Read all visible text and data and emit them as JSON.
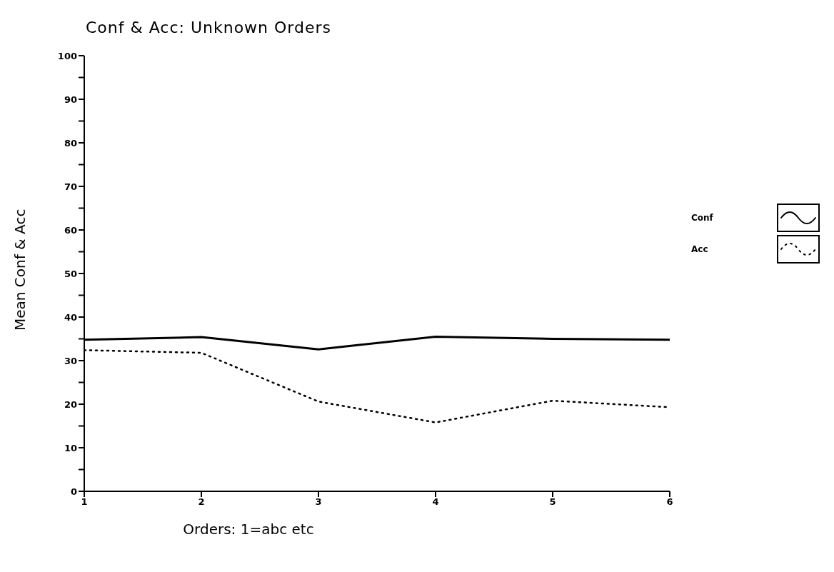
{
  "chart_data": {
    "type": "line",
    "title": "Conf & Acc: Unknown Orders",
    "xlabel": "Orders: 1=abc etc",
    "ylabel": "Mean Conf & Acc",
    "x": [
      1,
      2,
      3,
      4,
      5,
      6
    ],
    "series": [
      {
        "name": "Conf",
        "color": "#000000",
        "line_style": "solid",
        "values": [
          34.8,
          35.4,
          32.6,
          35.5,
          35,
          34.8
        ]
      },
      {
        "name": "Acc",
        "color": "#000000",
        "line_style": "dotted",
        "values": [
          32.4,
          31.8,
          20.6,
          15.8,
          20.8,
          19.3
        ]
      }
    ],
    "xlim": [
      1,
      6
    ],
    "xticks": [
      1,
      2,
      3,
      4,
      5,
      6
    ],
    "ylim": [
      0,
      100
    ],
    "yticks": [
      0,
      {
        "value": 5,
        "label": null
      },
      10,
      {
        "value": 15,
        "label": null
      },
      20,
      {
        "value": 25,
        "label": null
      },
      30,
      {
        "value": 35,
        "label": null
      },
      40,
      {
        "value": 45,
        "label": null
      },
      50,
      {
        "value": 55,
        "label": null
      },
      60,
      {
        "value": 65,
        "label": null
      },
      70,
      {
        "value": 75,
        "label": null
      },
      80,
      {
        "value": 85,
        "label": null
      },
      90,
      {
        "value": 95,
        "label": null
      },
      100
    ],
    "grid": false,
    "legend": "right",
    "marker": "none"
  }
}
